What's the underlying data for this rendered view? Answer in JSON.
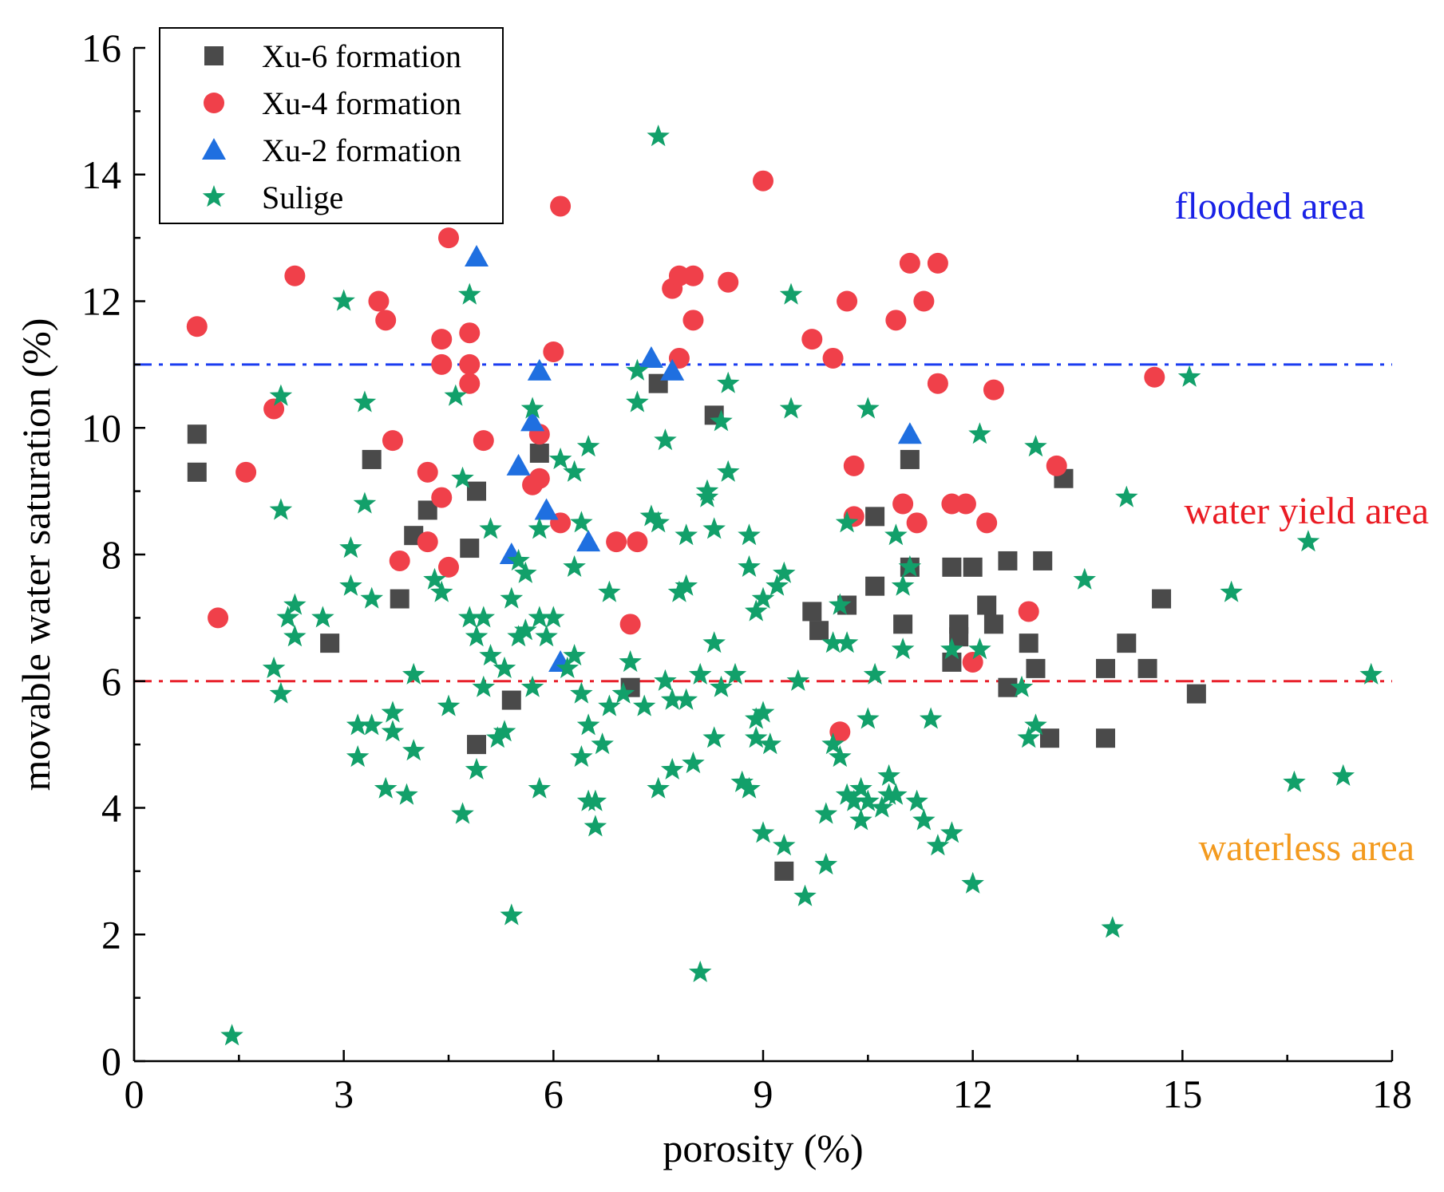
{
  "chart_data": {
    "type": "scatter",
    "title": "",
    "xlabel": "porosity (%)",
    "ylabel": "movable water saturation (%)",
    "xlim": [
      0,
      18
    ],
    "ylim": [
      0,
      16
    ],
    "xticks": [
      0,
      3,
      6,
      9,
      12,
      15,
      18
    ],
    "yticks": [
      0,
      2,
      4,
      6,
      8,
      10,
      12,
      14,
      16
    ],
    "legend_position": "top-left",
    "series": [
      {
        "name": "Xu-6 formation",
        "marker": "square",
        "color": "#4a4a4a",
        "points": [
          [
            0.9,
            9.9
          ],
          [
            0.9,
            9.3
          ],
          [
            2.8,
            6.6
          ],
          [
            3.4,
            9.5
          ],
          [
            3.8,
            7.3
          ],
          [
            4.0,
            8.3
          ],
          [
            4.2,
            8.7
          ],
          [
            4.8,
            8.1
          ],
          [
            4.9,
            9.0
          ],
          [
            4.9,
            5.0
          ],
          [
            5.4,
            5.7
          ],
          [
            5.8,
            9.6
          ],
          [
            7.1,
            5.9
          ],
          [
            7.5,
            10.7
          ],
          [
            8.3,
            10.2
          ],
          [
            9.3,
            3.0
          ],
          [
            9.7,
            7.1
          ],
          [
            9.8,
            6.8
          ],
          [
            10.2,
            7.2
          ],
          [
            10.6,
            8.6
          ],
          [
            10.6,
            7.5
          ],
          [
            11.0,
            6.9
          ],
          [
            11.1,
            7.8
          ],
          [
            11.1,
            9.5
          ],
          [
            11.7,
            7.8
          ],
          [
            11.7,
            6.3
          ],
          [
            11.8,
            6.9
          ],
          [
            11.8,
            6.7
          ],
          [
            12.0,
            7.8
          ],
          [
            12.2,
            7.2
          ],
          [
            12.3,
            6.9
          ],
          [
            12.5,
            5.9
          ],
          [
            12.5,
            7.9
          ],
          [
            12.8,
            6.6
          ],
          [
            12.9,
            6.2
          ],
          [
            13.0,
            7.9
          ],
          [
            13.1,
            5.1
          ],
          [
            13.3,
            9.2
          ],
          [
            13.9,
            6.2
          ],
          [
            13.9,
            5.1
          ],
          [
            14.2,
            6.6
          ],
          [
            14.5,
            6.2
          ],
          [
            14.7,
            7.3
          ],
          [
            15.2,
            5.8
          ]
        ]
      },
      {
        "name": "Xu-4 formation",
        "marker": "circle",
        "color": "#f0404a",
        "points": [
          [
            0.9,
            11.6
          ],
          [
            1.2,
            7.0
          ],
          [
            1.6,
            9.3
          ],
          [
            2.0,
            10.3
          ],
          [
            2.3,
            12.4
          ],
          [
            3.5,
            12.0
          ],
          [
            3.6,
            11.7
          ],
          [
            3.7,
            9.8
          ],
          [
            3.8,
            7.9
          ],
          [
            4.2,
            9.3
          ],
          [
            4.2,
            8.2
          ],
          [
            4.4,
            11.4
          ],
          [
            4.4,
            11.0
          ],
          [
            4.4,
            8.9
          ],
          [
            4.5,
            7.8
          ],
          [
            4.5,
            13.0
          ],
          [
            4.8,
            10.7
          ],
          [
            4.8,
            11.5
          ],
          [
            4.8,
            11.0
          ],
          [
            5.0,
            9.8
          ],
          [
            5.7,
            9.1
          ],
          [
            5.8,
            9.9
          ],
          [
            5.8,
            9.2
          ],
          [
            6.0,
            11.2
          ],
          [
            6.1,
            13.5
          ],
          [
            6.1,
            8.5
          ],
          [
            6.9,
            8.2
          ],
          [
            7.1,
            6.9
          ],
          [
            7.2,
            8.2
          ],
          [
            7.7,
            12.2
          ],
          [
            7.8,
            11.1
          ],
          [
            7.8,
            12.4
          ],
          [
            8.0,
            11.7
          ],
          [
            8.0,
            12.4
          ],
          [
            8.5,
            12.3
          ],
          [
            9.0,
            13.9
          ],
          [
            9.7,
            11.4
          ],
          [
            10.0,
            11.1
          ],
          [
            10.2,
            12.0
          ],
          [
            10.3,
            9.4
          ],
          [
            10.3,
            8.6
          ],
          [
            10.9,
            11.7
          ],
          [
            11.0,
            8.8
          ],
          [
            11.1,
            12.6
          ],
          [
            11.2,
            8.5
          ],
          [
            11.3,
            12.0
          ],
          [
            11.5,
            12.6
          ],
          [
            11.5,
            10.7
          ],
          [
            11.7,
            8.8
          ],
          [
            11.9,
            8.8
          ],
          [
            12.0,
            6.3
          ],
          [
            12.2,
            8.5
          ],
          [
            12.3,
            10.6
          ],
          [
            12.8,
            7.1
          ],
          [
            13.2,
            9.4
          ],
          [
            14.6,
            10.8
          ],
          [
            10.1,
            5.2
          ]
        ]
      },
      {
        "name": "Xu-2 formation",
        "marker": "triangle",
        "color": "#1f6fe0",
        "points": [
          [
            4.9,
            12.7
          ],
          [
            5.4,
            8.0
          ],
          [
            5.5,
            9.4
          ],
          [
            5.7,
            10.1
          ],
          [
            5.8,
            10.9
          ],
          [
            5.9,
            8.7
          ],
          [
            6.1,
            6.3
          ],
          [
            6.5,
            8.2
          ],
          [
            7.4,
            11.1
          ],
          [
            7.7,
            10.9
          ],
          [
            11.1,
            9.9
          ]
        ]
      },
      {
        "name": "Sulige",
        "marker": "star",
        "color": "#12a06a",
        "points": [
          [
            1.4,
            0.4
          ],
          [
            2.0,
            6.2
          ],
          [
            2.1,
            10.5
          ],
          [
            2.1,
            8.7
          ],
          [
            2.1,
            5.8
          ],
          [
            2.2,
            7.0
          ],
          [
            2.3,
            6.7
          ],
          [
            2.3,
            7.2
          ],
          [
            2.7,
            7.0
          ],
          [
            3.0,
            12.0
          ],
          [
            3.1,
            8.1
          ],
          [
            3.1,
            7.5
          ],
          [
            3.2,
            4.8
          ],
          [
            3.2,
            5.3
          ],
          [
            3.3,
            10.4
          ],
          [
            3.3,
            8.8
          ],
          [
            3.4,
            7.3
          ],
          [
            3.4,
            5.3
          ],
          [
            3.6,
            4.3
          ],
          [
            3.7,
            5.2
          ],
          [
            3.7,
            5.5
          ],
          [
            3.9,
            4.2
          ],
          [
            4.0,
            4.9
          ],
          [
            4.0,
            6.1
          ],
          [
            4.3,
            7.6
          ],
          [
            4.4,
            7.4
          ],
          [
            4.5,
            5.6
          ],
          [
            4.6,
            10.5
          ],
          [
            4.7,
            9.2
          ],
          [
            4.7,
            3.9
          ],
          [
            4.8,
            12.1
          ],
          [
            4.8,
            7.0
          ],
          [
            4.9,
            6.7
          ],
          [
            4.9,
            4.6
          ],
          [
            5.0,
            5.9
          ],
          [
            5.0,
            7.0
          ],
          [
            5.1,
            8.4
          ],
          [
            5.1,
            6.4
          ],
          [
            5.2,
            5.1
          ],
          [
            5.3,
            6.2
          ],
          [
            5.3,
            5.2
          ],
          [
            5.4,
            2.3
          ],
          [
            5.4,
            7.3
          ],
          [
            5.5,
            6.7
          ],
          [
            5.5,
            7.9
          ],
          [
            5.6,
            6.8
          ],
          [
            5.6,
            7.7
          ],
          [
            5.7,
            10.3
          ],
          [
            5.7,
            5.9
          ],
          [
            5.8,
            8.4
          ],
          [
            5.8,
            4.3
          ],
          [
            5.8,
            7.0
          ],
          [
            5.9,
            6.7
          ],
          [
            6.0,
            7.0
          ],
          [
            6.1,
            9.5
          ],
          [
            6.2,
            6.2
          ],
          [
            6.3,
            9.3
          ],
          [
            6.3,
            7.8
          ],
          [
            6.3,
            6.4
          ],
          [
            6.4,
            8.5
          ],
          [
            6.4,
            5.8
          ],
          [
            6.4,
            4.8
          ],
          [
            6.5,
            9.7
          ],
          [
            6.5,
            5.3
          ],
          [
            6.5,
            4.1
          ],
          [
            6.6,
            4.1
          ],
          [
            6.6,
            3.7
          ],
          [
            6.7,
            5.0
          ],
          [
            6.8,
            7.4
          ],
          [
            6.8,
            5.6
          ],
          [
            7.0,
            5.8
          ],
          [
            7.1,
            6.3
          ],
          [
            7.2,
            10.4
          ],
          [
            7.2,
            10.9
          ],
          [
            7.3,
            5.6
          ],
          [
            7.4,
            8.6
          ],
          [
            7.5,
            8.5
          ],
          [
            7.5,
            4.3
          ],
          [
            7.5,
            14.6
          ],
          [
            7.6,
            9.8
          ],
          [
            7.6,
            6.0
          ],
          [
            7.7,
            4.6
          ],
          [
            7.7,
            5.7
          ],
          [
            7.8,
            7.4
          ],
          [
            7.9,
            8.3
          ],
          [
            7.9,
            5.7
          ],
          [
            7.9,
            7.5
          ],
          [
            8.0,
            4.7
          ],
          [
            8.1,
            1.4
          ],
          [
            8.1,
            6.1
          ],
          [
            8.2,
            9.0
          ],
          [
            8.2,
            8.9
          ],
          [
            8.3,
            6.6
          ],
          [
            8.3,
            5.1
          ],
          [
            8.3,
            8.4
          ],
          [
            8.4,
            10.1
          ],
          [
            8.4,
            5.9
          ],
          [
            8.5,
            10.7
          ],
          [
            8.5,
            9.3
          ],
          [
            8.6,
            6.1
          ],
          [
            8.7,
            4.4
          ],
          [
            8.8,
            8.3
          ],
          [
            8.8,
            7.8
          ],
          [
            8.8,
            4.3
          ],
          [
            8.9,
            5.4
          ],
          [
            8.9,
            5.1
          ],
          [
            8.9,
            7.1
          ],
          [
            9.0,
            5.5
          ],
          [
            9.0,
            3.6
          ],
          [
            9.0,
            7.3
          ],
          [
            9.1,
            5.0
          ],
          [
            9.2,
            7.5
          ],
          [
            9.3,
            7.7
          ],
          [
            9.3,
            3.4
          ],
          [
            9.4,
            12.1
          ],
          [
            9.4,
            10.3
          ],
          [
            9.5,
            6.0
          ],
          [
            9.6,
            2.6
          ],
          [
            9.9,
            3.1
          ],
          [
            9.9,
            3.9
          ],
          [
            10.0,
            6.6
          ],
          [
            10.0,
            5.0
          ],
          [
            10.1,
            7.2
          ],
          [
            10.1,
            4.8
          ],
          [
            10.2,
            8.5
          ],
          [
            10.2,
            6.6
          ],
          [
            10.2,
            4.2
          ],
          [
            10.3,
            4.1
          ],
          [
            10.4,
            3.8
          ],
          [
            10.4,
            4.3
          ],
          [
            10.5,
            4.1
          ],
          [
            10.5,
            5.4
          ],
          [
            10.5,
            10.3
          ],
          [
            10.6,
            6.1
          ],
          [
            10.7,
            4.0
          ],
          [
            10.8,
            4.5
          ],
          [
            10.8,
            4.2
          ],
          [
            10.9,
            4.2
          ],
          [
            10.9,
            8.3
          ],
          [
            11.0,
            6.5
          ],
          [
            11.0,
            7.5
          ],
          [
            11.1,
            7.8
          ],
          [
            11.2,
            4.1
          ],
          [
            11.3,
            3.8
          ],
          [
            11.4,
            5.4
          ],
          [
            11.5,
            3.4
          ],
          [
            11.7,
            3.6
          ],
          [
            11.7,
            6.5
          ],
          [
            12.0,
            2.8
          ],
          [
            12.1,
            9.9
          ],
          [
            12.1,
            6.5
          ],
          [
            12.7,
            5.9
          ],
          [
            12.8,
            5.1
          ],
          [
            12.9,
            5.3
          ],
          [
            12.9,
            9.7
          ],
          [
            13.6,
            7.6
          ],
          [
            14.0,
            2.1
          ],
          [
            14.2,
            8.9
          ],
          [
            15.1,
            10.8
          ],
          [
            15.7,
            7.4
          ],
          [
            16.6,
            4.4
          ],
          [
            16.8,
            8.2
          ],
          [
            17.3,
            4.5
          ],
          [
            17.7,
            6.1
          ]
        ]
      }
    ],
    "thresholds": [
      {
        "y": 11,
        "color": "#1a3cf0",
        "style": "dash-dot"
      },
      {
        "y": 6,
        "color": "#e8202a",
        "style": "dash-dot"
      }
    ],
    "annotations": [
      {
        "text": "flooded area",
        "color": "#1a22e6"
      },
      {
        "text": "water yield area",
        "color": "#ea1c24"
      },
      {
        "text": "waterless area",
        "color": "#f39a1e"
      }
    ]
  }
}
